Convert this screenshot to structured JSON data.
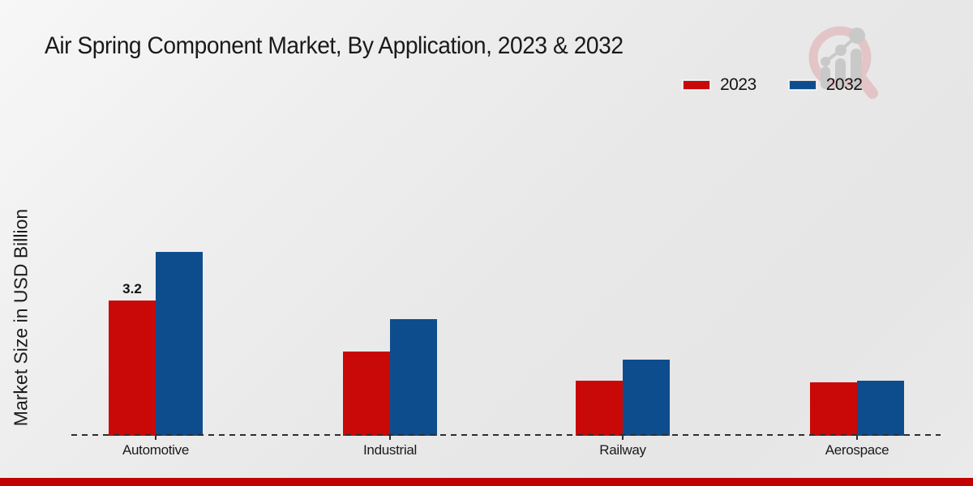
{
  "page": {
    "title": "Air Spring Component Market, By Application, 2023 & 2032"
  },
  "legend": {
    "items": [
      {
        "label": "2023",
        "color": "#c90808"
      },
      {
        "label": "2032",
        "color": "#0e4d8d"
      }
    ]
  },
  "chart_data": {
    "type": "bar",
    "title": "Air Spring Component Market, By Application, 2023 & 2032",
    "categories": [
      "Automotive",
      "Industrial",
      "Railway",
      "Aerospace"
    ],
    "series": [
      {
        "name": "2023",
        "color": "#c90808",
        "values": [
          3.2,
          2.0,
          1.3,
          1.26
        ],
        "data_labels": [
          "3.2",
          "",
          "",
          ""
        ]
      },
      {
        "name": "2032",
        "color": "#0e4d8d",
        "values": [
          4.35,
          2.75,
          1.8,
          1.3
        ],
        "data_labels": [
          "",
          "",
          "",
          ""
        ]
      }
    ],
    "xlabel": "",
    "ylabel": "Market Size in USD Billion",
    "ylim": [
      0,
      5
    ],
    "grid": false,
    "axis_style": "dashed-baseline-only",
    "legend_position": "top-right",
    "only_labeled_value": "3.2"
  },
  "branding": {
    "logo_icon": "magnifier-chart-watermark-icon",
    "accent_bar_color": "#c00202"
  }
}
